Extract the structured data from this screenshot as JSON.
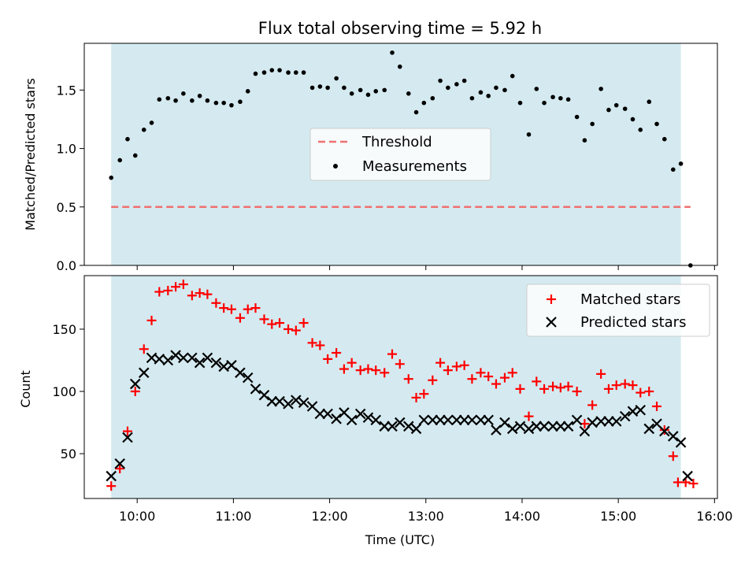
{
  "chart_data": {
    "title": "Flux total observing time = 5.92 h",
    "shade_color": "#d4eaf0",
    "x_unit": "hours (UTC)",
    "xlim": [
      9.45,
      16.03
    ],
    "xlabel": "Time (UTC)",
    "xticks": [
      10,
      11,
      12,
      13,
      14,
      15,
      16
    ],
    "xtick_labels": [
      "10:00",
      "11:00",
      "12:00",
      "13:00",
      "14:00",
      "15:00",
      "16:00"
    ],
    "observing_window": [
      9.73,
      15.65
    ],
    "panels": [
      {
        "type": "scatter",
        "ylabel": "Matched/Predicted stars",
        "ylim": [
          0,
          1.9
        ],
        "yticks": [
          0.0,
          0.5,
          1.0,
          1.5
        ],
        "ytick_labels": [
          "0.0",
          "0.5",
          "1.0",
          "1.5"
        ],
        "legend_position": "center",
        "threshold": {
          "name": "Threshold",
          "value": 0.5,
          "x_range": [
            9.73,
            15.75
          ],
          "color": "#f07070"
        },
        "series": [
          {
            "name": "Measurements",
            "color": "#000000",
            "x": [
              9.73,
              9.82,
              9.9,
              9.98,
              10.07,
              10.15,
              10.23,
              10.32,
              10.4,
              10.48,
              10.57,
              10.65,
              10.73,
              10.82,
              10.9,
              10.98,
              11.07,
              11.15,
              11.23,
              11.32,
              11.4,
              11.48,
              11.57,
              11.65,
              11.73,
              11.82,
              11.9,
              11.98,
              12.07,
              12.15,
              12.23,
              12.32,
              12.4,
              12.48,
              12.57,
              12.65,
              12.73,
              12.82,
              12.9,
              12.98,
              13.07,
              13.15,
              13.23,
              13.32,
              13.4,
              13.48,
              13.57,
              13.65,
              13.73,
              13.82,
              13.9,
              13.98,
              14.07,
              14.15,
              14.23,
              14.32,
              14.4,
              14.48,
              14.57,
              14.65,
              14.73,
              14.82,
              14.9,
              14.98,
              15.07,
              15.15,
              15.23,
              15.32,
              15.4,
              15.48,
              15.57,
              15.65,
              15.75
            ],
            "y": [
              0.75,
              0.9,
              1.08,
              0.94,
              1.16,
              1.22,
              1.42,
              1.43,
              1.41,
              1.47,
              1.41,
              1.45,
              1.41,
              1.39,
              1.39,
              1.37,
              1.4,
              1.49,
              1.64,
              1.65,
              1.67,
              1.67,
              1.65,
              1.65,
              1.65,
              1.52,
              1.53,
              1.52,
              1.6,
              1.52,
              1.47,
              1.5,
              1.46,
              1.49,
              1.5,
              1.82,
              1.7,
              1.47,
              1.31,
              1.39,
              1.43,
              1.58,
              1.52,
              1.55,
              1.58,
              1.43,
              1.48,
              1.45,
              1.52,
              1.5,
              1.62,
              1.39,
              1.12,
              1.51,
              1.39,
              1.44,
              1.43,
              1.42,
              1.27,
              1.07,
              1.21,
              1.51,
              1.33,
              1.37,
              1.34,
              1.25,
              1.16,
              1.4,
              1.21,
              1.08,
              0.82,
              0.87,
              0.0
            ]
          }
        ]
      },
      {
        "type": "scatter",
        "ylabel": "Count",
        "ylim": [
          14,
          193
        ],
        "yticks": [
          50,
          100,
          150
        ],
        "ytick_labels": [
          "50",
          "100",
          "150"
        ],
        "legend_position": "upper right",
        "series": [
          {
            "name": "Matched stars",
            "marker": "plus",
            "color": "#ff0000",
            "x": [
              9.73,
              9.82,
              9.9,
              9.98,
              10.07,
              10.15,
              10.23,
              10.32,
              10.4,
              10.48,
              10.57,
              10.65,
              10.73,
              10.82,
              10.9,
              10.98,
              11.07,
              11.15,
              11.23,
              11.32,
              11.4,
              11.48,
              11.57,
              11.65,
              11.73,
              11.82,
              11.9,
              11.98,
              12.07,
              12.15,
              12.23,
              12.32,
              12.4,
              12.48,
              12.57,
              12.65,
              12.73,
              12.82,
              12.9,
              12.98,
              13.07,
              13.15,
              13.23,
              13.32,
              13.4,
              13.48,
              13.57,
              13.65,
              13.73,
              13.82,
              13.9,
              13.98,
              14.07,
              14.15,
              14.23,
              14.32,
              14.4,
              14.48,
              14.57,
              14.65,
              14.73,
              14.82,
              14.9,
              14.98,
              15.07,
              15.15,
              15.23,
              15.32,
              15.4,
              15.48,
              15.57,
              15.62,
              15.7,
              15.78
            ],
            "y": [
              24,
              38,
              68,
              100,
              134,
              157,
              180,
              181,
              184,
              186,
              177,
              179,
              178,
              171,
              167,
              166,
              159,
              166,
              167,
              158,
              154,
              155,
              150,
              149,
              155,
              139,
              137,
              126,
              131,
              118,
              123,
              117,
              118,
              117,
              115,
              130,
              122,
              110,
              95,
              98,
              109,
              123,
              117,
              120,
              121,
              110,
              115,
              112,
              106,
              111,
              115,
              102,
              80,
              108,
              102,
              104,
              103,
              104,
              100,
              74,
              89,
              114,
              102,
              105,
              106,
              105,
              99,
              100,
              88,
              69,
              48,
              27,
              27,
              26
            ]
          },
          {
            "name": "Predicted stars",
            "marker": "x",
            "color": "#000000",
            "x": [
              9.73,
              9.82,
              9.9,
              9.98,
              10.07,
              10.15,
              10.23,
              10.32,
              10.4,
              10.48,
              10.57,
              10.65,
              10.73,
              10.82,
              10.9,
              10.98,
              11.07,
              11.15,
              11.23,
              11.32,
              11.4,
              11.48,
              11.57,
              11.65,
              11.73,
              11.82,
              11.9,
              11.98,
              12.07,
              12.15,
              12.23,
              12.32,
              12.4,
              12.48,
              12.57,
              12.65,
              12.73,
              12.82,
              12.9,
              12.98,
              13.07,
              13.15,
              13.23,
              13.32,
              13.4,
              13.48,
              13.57,
              13.65,
              13.73,
              13.82,
              13.9,
              13.98,
              14.07,
              14.15,
              14.23,
              14.32,
              14.4,
              14.48,
              14.57,
              14.65,
              14.73,
              14.82,
              14.9,
              14.98,
              15.07,
              15.15,
              15.23,
              15.32,
              15.4,
              15.48,
              15.57,
              15.65,
              15.72
            ],
            "y": [
              32,
              42,
              63,
              106,
              115,
              127,
              126,
              125,
              129,
              127,
              127,
              123,
              127,
              123,
              120,
              121,
              115,
              111,
              102,
              97,
              92,
              92,
              90,
              93,
              91,
              88,
              82,
              82,
              78,
              83,
              77,
              82,
              79,
              77,
              72,
              72,
              75,
              72,
              70,
              77,
              77,
              77,
              77,
              77,
              77,
              77,
              77,
              77,
              69,
              75,
              70,
              72,
              70,
              72,
              72,
              72,
              72,
              72,
              77,
              68,
              75,
              76,
              76,
              76,
              80,
              84,
              85,
              70,
              74,
              68,
              64,
              59,
              32
            ]
          }
        ]
      }
    ]
  }
}
